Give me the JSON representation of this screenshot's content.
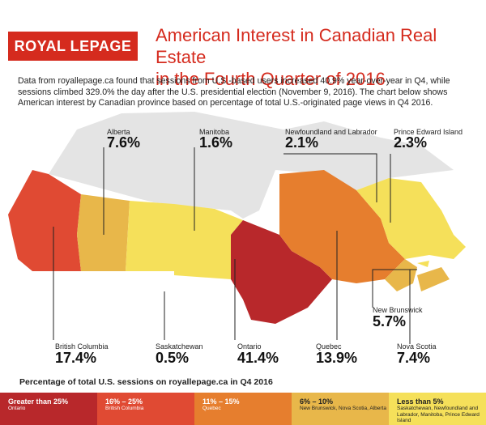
{
  "header": {
    "logo_text": "ROYAL LEPAGE",
    "title_line1": "American Interest in Canadian Real Estate",
    "title_line2": "in the Fourth Quarter of 2016",
    "description": "Data from royallepage.ca found that sessions from U.S.-based users increased 40.9% year-over-year in Q4, while sessions climbed 329.0% the day after the U.S. presidential election (November 9, 2016). The chart below shows American interest by Canadian province based on percentage of total U.S.-originated page views in Q4 2016."
  },
  "provinces": {
    "alberta": {
      "name": "Alberta",
      "value": "7.6%"
    },
    "manitoba": {
      "name": "Manitoba",
      "value": "1.6%"
    },
    "newfoundland": {
      "name": "Newfoundland and Labrador",
      "value": "2.1%"
    },
    "pei": {
      "name": "Prince Edward Island",
      "value": "2.3%"
    },
    "new_brunswick": {
      "name": "New Brunswick",
      "value": "5.7%"
    },
    "bc": {
      "name": "British Columbia",
      "value": "17.4%"
    },
    "saskatchewan": {
      "name": "Saskatchewan",
      "value": "0.5%"
    },
    "ontario": {
      "name": "Ontario",
      "value": "41.4%"
    },
    "quebec": {
      "name": "Quebec",
      "value": "13.9%"
    },
    "nova_scotia": {
      "name": "Nova Scotia",
      "value": "7.4%"
    }
  },
  "legend": {
    "title": "Percentage of total U.S. sessions on royallepage.ca in Q4 2016",
    "items": [
      {
        "range": "Greater than 25%",
        "provinces": "Ontario",
        "color": "#b8282b"
      },
      {
        "range": "16% – 25%",
        "provinces": "British Columbia",
        "color": "#e04a33"
      },
      {
        "range": "11% – 15%",
        "provinces": "Quebec",
        "color": "#e67e2e"
      },
      {
        "range": "6% – 10%",
        "provinces": "New Brunswick, Nova Scotia, Alberta",
        "color": "#e8b74a"
      },
      {
        "range": "Less than 5%",
        "provinces": "Saskatchewan, Newfoundland and Labrador, Manitoba, Prince Edward Island",
        "color": "#f5e05a"
      }
    ]
  },
  "colors": {
    "brand": "#d52b1e",
    "territory": "#e4e4e4"
  }
}
